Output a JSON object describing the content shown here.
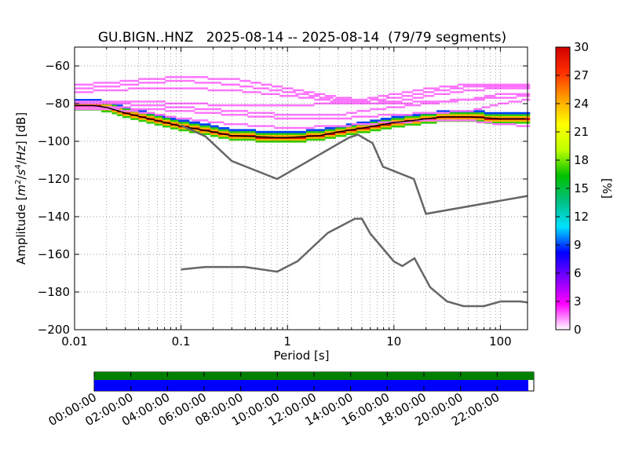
{
  "chart_data": [
    {
      "type": "heatmap",
      "subtype": "probabilistic-power-spectral-density",
      "title": "GU.BIGN..HNZ   2025-08-14 -- 2025-08-14  (79/79 segments)",
      "xlabel": "Period [s]",
      "ylabel": "Amplitude [m²/s⁴/Hz] [dB]",
      "x_scale": "log",
      "xlim": [
        0.01,
        180
      ],
      "ylim": [
        -200,
        -50
      ],
      "x_ticks": [
        "0.01",
        "0.1",
        "1",
        "10",
        "100"
      ],
      "y_ticks": [
        "−60",
        "−80",
        "−100",
        "−120",
        "−140",
        "−160",
        "−180",
        "−200"
      ],
      "grid": true,
      "colorbar": {
        "label": "[%]",
        "range": [
          0,
          30
        ],
        "ticks": [
          "0",
          "3",
          "6",
          "9",
          "12",
          "15",
          "18",
          "21",
          "24",
          "27",
          "30"
        ],
        "colors": [
          "#ffffff",
          "#ff00ff",
          "#8000ff",
          "#0000ff",
          "#00e0ff",
          "#00c080",
          "#00c000",
          "#c0ff00",
          "#ffff00",
          "#ffa000",
          "#ff3000",
          "#d00000"
        ]
      },
      "density": {
        "high_band": {
          "periods": [
            0.01,
            0.015,
            0.02,
            0.03,
            0.05,
            0.1,
            0.2,
            0.3,
            0.5,
            0.8,
            1,
            2,
            3,
            5,
            8,
            10,
            15,
            20,
            30,
            50,
            100,
            180
          ],
          "db": [
            -81,
            -81,
            -82,
            -85,
            -88,
            -92,
            -95,
            -97,
            -97.5,
            -98,
            -98,
            -97,
            -95,
            -93,
            -91,
            -90,
            -89,
            -88,
            -87,
            -87,
            -88,
            -88
          ]
        },
        "scatter_percent": 1.5,
        "scatter_lines": [
          {
            "periods": [
              0.01,
              0.02,
              0.05,
              0.1,
              0.3,
              1,
              3,
              5,
              10,
              20,
              50,
              100,
              180
            ],
            "db": [
              -70,
              -69,
              -67,
              -66,
              -67,
              -72,
              -77,
              -78,
              -75,
              -72,
              -70,
              -70,
              -70
            ]
          },
          {
            "periods": [
              0.01,
              0.02,
              0.05,
              0.1,
              0.3,
              1,
              3,
              5,
              10,
              20,
              50,
              100,
              180
            ],
            "db": [
              -72,
              -71,
              -69,
              -68,
              -70,
              -74,
              -78,
              -79,
              -77,
              -74,
              -71,
              -71,
              -71
            ]
          },
          {
            "periods": [
              0.01,
              0.02,
              0.05,
              0.1,
              0.3,
              1,
              3,
              5,
              10,
              20,
              50,
              100,
              180
            ],
            "db": [
              -74,
              -73,
              -72,
              -72,
              -73,
              -76,
              -79,
              -80,
              -79,
              -76,
              -73,
              -72,
              -72
            ]
          },
          {
            "periods": [
              0.01,
              0.02,
              0.05,
              0.1,
              0.3,
              1,
              3,
              5,
              10,
              20,
              50,
              100,
              180
            ],
            "db": [
              -80,
              -80,
              -81,
              -82,
              -84,
              -86,
              -86,
              -84,
              -82,
              -80,
              -78,
              -75,
              -75
            ]
          },
          {
            "periods": [
              0.01,
              0.02,
              0.05,
              0.1,
              0.3,
              1,
              3,
              5,
              10,
              20,
              50,
              100,
              180
            ],
            "db": [
              -82,
              -82,
              -83,
              -84,
              -86,
              -88,
              -88,
              -87,
              -86,
              -85,
              -84,
              -80,
              -78
            ]
          },
          {
            "periods": [
              0.01,
              0.02,
              0.05,
              0.1,
              0.3,
              1,
              3,
              5,
              10,
              20,
              50,
              100,
              180
            ],
            "db": [
              -83,
              -83,
              -85,
              -88,
              -91,
              -93,
              -92,
              -91,
              -90,
              -89,
              -89,
              -91,
              -92
            ]
          },
          {
            "periods": [
              0.01,
              0.02,
              0.05,
              0.1,
              0.3,
              1,
              3,
              5,
              10,
              20,
              50,
              100,
              180
            ],
            "db": [
              -79,
              -79,
              -79,
              -80,
              -81,
              -81,
              -80,
              -80,
              -80,
              -79,
              -78,
              -77,
              -76
            ]
          }
        ]
      },
      "reference_curves": [
        {
          "periods": [
            0.1,
            0.17,
            0.4,
            0.8,
            1.24,
            2.4,
            4.3,
            5,
            6,
            10,
            12,
            15.6,
            21.9,
            31.6,
            45,
            70,
            101,
            154,
            180
          ],
          "db": [
            -168,
            -166.7,
            -166.7,
            -169.2,
            -163.7,
            -148.6,
            -141.1,
            -141.1,
            -149,
            -163.8,
            -166.2,
            -162.1,
            -177.5,
            -185,
            -187.5,
            -187.5,
            -185,
            -185,
            -185.5
          ]
        },
        {
          "periods": [
            0.1,
            0.17,
            0.3,
            0.8,
            3.8,
            4.6,
            6.3,
            7.9,
            15.4,
            20,
            180
          ],
          "db": [
            -91.5,
            -97.4,
            -110.5,
            -120,
            -98,
            -96.5,
            -101,
            -113.5,
            -120,
            -138.5,
            -129
          ]
        }
      ]
    },
    {
      "type": "timeline",
      "ticks": [
        "00:00:00",
        "02:00:00",
        "04:00:00",
        "06:00:00",
        "08:00:00",
        "10:00:00",
        "12:00:00",
        "14:00:00",
        "16:00:00",
        "18:00:00",
        "20:00:00",
        "22:00:00"
      ],
      "data_coverage_end_hours": 24,
      "segment_coverage_end_hours": 23.7,
      "colors": {
        "data": "#008000",
        "segments": "#0000ff"
      }
    }
  ]
}
